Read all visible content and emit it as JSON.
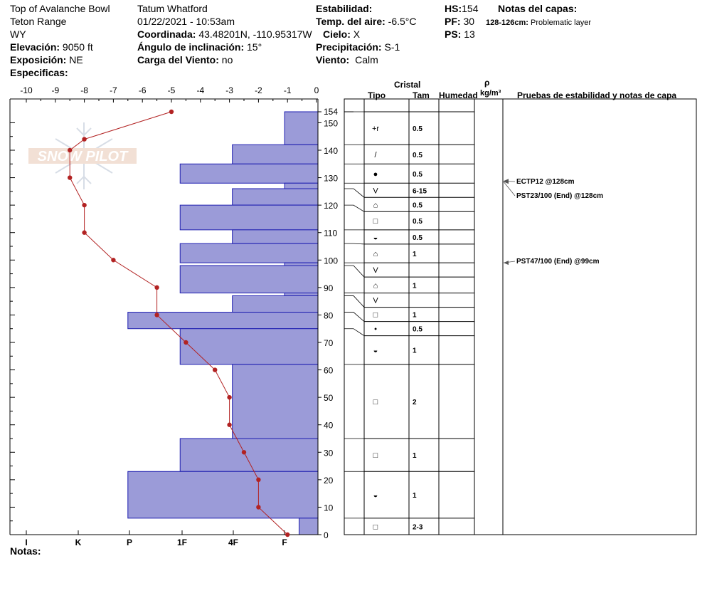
{
  "header": {
    "location": "Top of Avalanche Bowl",
    "range": "Teton Range",
    "state": "WY",
    "elevation_label": "Elevación:",
    "elevation_value": "9050 ft",
    "aspect_label": "Exposición:",
    "aspect_value": "NE",
    "specifics_label": "Especificas:",
    "observer": "Tatum Whatford",
    "datetime": "01/22/2021 - 10:53am",
    "coord_label": "Coordinada:",
    "coord_value": "43.48201N, -110.95317W",
    "slope_label": "Ángulo de inclinación:",
    "slope_value": "15°",
    "wind_load_label": "Carga del Viento:",
    "wind_load_value": "no",
    "stability_label": "Estabilidad:",
    "air_temp_label": "Temp. del aire:",
    "air_temp_value": "-6.5°C",
    "sky_label": "Cielo:",
    "sky_value": "X",
    "precip_label": "Precipitación:",
    "precip_value": "S-1",
    "wind_label": "Viento:",
    "wind_value": "Calm",
    "hs_label": "HS:",
    "hs_value": "154",
    "pf_label": "PF:",
    "pf_value": "30",
    "ps_label": "PS:",
    "ps_value": "13",
    "layer_notes_label": "Notas del capas:",
    "layer_note_depth": "128-126cm:",
    "layer_note_text": "Problematic layer"
  },
  "table_headers": {
    "crystal": "Cristal",
    "type": "Tipo",
    "size": "Tam",
    "moisture": "Humedad",
    "rho": "ρ",
    "density_unit": "kg/m³",
    "tests": "Pruebas de estabilidad y notas de capa"
  },
  "notes_label": "Notas:",
  "watermark": "SNOW PILOT",
  "chart_data": {
    "type": "snow-profile",
    "temperature_axis": {
      "ticks": [
        "-10",
        "-9",
        "-8",
        "-7",
        "-6",
        "-5",
        "-4",
        "-3",
        "-2",
        "-1",
        "0"
      ],
      "range": [
        -10,
        0
      ]
    },
    "hardness_axis": {
      "ticks": [
        "I",
        "K",
        "P",
        "1F",
        "4F",
        "F"
      ]
    },
    "depth_axis": {
      "ticks": [
        "0",
        "10",
        "20",
        "30",
        "40",
        "50",
        "60",
        "70",
        "80",
        "90",
        "100",
        "110",
        "120",
        "130",
        "140",
        "150",
        "154"
      ],
      "range": [
        0,
        154
      ]
    },
    "temperature_profile": [
      {
        "depth": 154,
        "temp": -5.0
      },
      {
        "depth": 144,
        "temp": -8.0
      },
      {
        "depth": 140,
        "temp": -8.5
      },
      {
        "depth": 130,
        "temp": -8.5
      },
      {
        "depth": 120,
        "temp": -8.0
      },
      {
        "depth": 110,
        "temp": -8.0
      },
      {
        "depth": 100,
        "temp": -7.0
      },
      {
        "depth": 90,
        "temp": -5.5
      },
      {
        "depth": 80,
        "temp": -5.5
      },
      {
        "depth": 70,
        "temp": -4.5
      },
      {
        "depth": 60,
        "temp": -3.5
      },
      {
        "depth": 50,
        "temp": -3.0
      },
      {
        "depth": 40,
        "temp": -3.0
      },
      {
        "depth": 30,
        "temp": -2.5
      },
      {
        "depth": 20,
        "temp": -2.0
      },
      {
        "depth": 10,
        "temp": -2.0
      },
      {
        "depth": 0,
        "temp": -1.0
      }
    ],
    "hardness_layers": [
      {
        "top": 154,
        "bottom": 142,
        "temp_extent": -1.1
      },
      {
        "top": 142,
        "bottom": 135,
        "temp_extent": -2.9
      },
      {
        "top": 135,
        "bottom": 128,
        "temp_extent": -4.7
      },
      {
        "top": 128,
        "bottom": 126,
        "temp_extent": -1.1
      },
      {
        "top": 126,
        "bottom": 120,
        "temp_extent": -2.9
      },
      {
        "top": 120,
        "bottom": 111,
        "temp_extent": -4.7
      },
      {
        "top": 111,
        "bottom": 106,
        "temp_extent": -2.9
      },
      {
        "top": 106,
        "bottom": 99,
        "temp_extent": -4.7
      },
      {
        "top": 99,
        "bottom": 98,
        "temp_extent": -1.1
      },
      {
        "top": 98,
        "bottom": 88,
        "temp_extent": -4.7
      },
      {
        "top": 88,
        "bottom": 87,
        "temp_extent": -1.1
      },
      {
        "top": 87,
        "bottom": 81,
        "temp_extent": -2.9
      },
      {
        "top": 81,
        "bottom": 75,
        "temp_extent": -6.5
      },
      {
        "top": 75,
        "bottom": 62,
        "temp_extent": -4.7
      },
      {
        "top": 62,
        "bottom": 35,
        "temp_extent": -2.9
      },
      {
        "top": 35,
        "bottom": 23,
        "temp_extent": -4.7
      },
      {
        "top": 23,
        "bottom": 6,
        "temp_extent": -6.5
      },
      {
        "top": 6,
        "bottom": 0,
        "temp_extent": -0.6
      }
    ],
    "crystal_layers": [
      {
        "top": 154,
        "bottom": 142,
        "type": "+r",
        "size": "0.5"
      },
      {
        "top": 142,
        "bottom": 135,
        "type": "/",
        "size": "0.5"
      },
      {
        "top": 135,
        "bottom": 128,
        "type": "●",
        "size": "0.5"
      },
      {
        "top": 128,
        "bottom": 126,
        "type": "V",
        "size": "6-15"
      },
      {
        "top": 126,
        "bottom": 120,
        "type": "⌂",
        "size": "0.5"
      },
      {
        "top": 120,
        "bottom": 111,
        "type": "□",
        "size": "0.5"
      },
      {
        "top": 111,
        "bottom": 106,
        "type": "◒",
        "size": "0.5"
      },
      {
        "top": 106,
        "bottom": 99,
        "type": "⌂",
        "size": "1"
      },
      {
        "top": 99,
        "bottom": 98,
        "type": "V",
        "size": ""
      },
      {
        "top": 98,
        "bottom": 88,
        "type": "⌂",
        "size": "1"
      },
      {
        "top": 88,
        "bottom": 87,
        "type": "V",
        "size": ""
      },
      {
        "top": 87,
        "bottom": 81,
        "type": "□",
        "size": "1"
      },
      {
        "top": 81,
        "bottom": 75,
        "type": "•",
        "size": "0.5"
      },
      {
        "top": 75,
        "bottom": 62,
        "type": "◒",
        "size": "1"
      },
      {
        "top": 62,
        "bottom": 35,
        "type": "□",
        "size": "2"
      },
      {
        "top": 35,
        "bottom": 23,
        "type": "□",
        "size": "1"
      },
      {
        "top": 23,
        "bottom": 6,
        "type": "◒",
        "size": "1"
      },
      {
        "top": 6,
        "bottom": 0,
        "type": "□",
        "size": "2-3"
      }
    ],
    "stability_tests": [
      {
        "text": "ECTP12 @128cm",
        "depth": 128
      },
      {
        "text": "PST23/100 (End) @128cm",
        "depth": 128
      },
      {
        "text": "PST47/100 (End) @99cm",
        "depth": 99
      }
    ]
  }
}
